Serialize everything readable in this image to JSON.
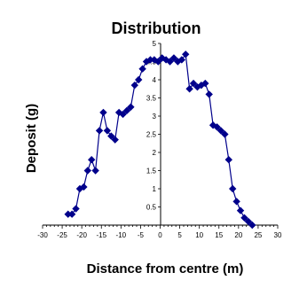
{
  "chart_data": {
    "type": "line",
    "title": "Distribution",
    "xlabel": "Distance from centre (m)",
    "ylabel": "Deposit (g)",
    "xlim": [
      -30,
      30
    ],
    "ylim": [
      0,
      5
    ],
    "x_ticks": [
      -30,
      -25,
      -20,
      -15,
      -10,
      -5,
      0,
      5,
      10,
      15,
      20,
      25,
      30
    ],
    "y_ticks": [
      0.5,
      1,
      1.5,
      2,
      2.5,
      3,
      3.5,
      4,
      4.5,
      5
    ],
    "x_tick_labels": [
      "-30",
      "-25",
      "-20",
      "-15",
      "-10",
      "-5",
      "0",
      "5",
      "10",
      "15",
      "20",
      "25",
      "30"
    ],
    "y_tick_labels": [
      "0.5",
      "1",
      "1.5",
      "2",
      "2.5",
      "3",
      "3.5",
      "4",
      "4.5",
      "5"
    ],
    "marker": "diamond",
    "color": "#00008b",
    "grid": false,
    "series": [
      {
        "points": [
          [
            -23.5,
            0.3
          ],
          [
            -22.5,
            0.3
          ],
          [
            -21.5,
            0.45
          ],
          [
            -20.5,
            1.0
          ],
          [
            -19.5,
            1.05
          ],
          [
            -18.5,
            1.5
          ],
          [
            -17.5,
            1.8
          ],
          [
            -16.5,
            1.5
          ],
          [
            -15.5,
            2.6
          ],
          [
            -14.5,
            3.1
          ],
          [
            -13.5,
            2.6
          ],
          [
            -12.5,
            2.45
          ],
          [
            -11.5,
            2.35
          ],
          [
            -10.5,
            3.1
          ],
          [
            -9.5,
            3.05
          ],
          [
            -8.5,
            3.15
          ],
          [
            -7.5,
            3.25
          ],
          [
            -6.5,
            3.85
          ],
          [
            -5.5,
            4.0
          ],
          [
            -4.5,
            4.3
          ],
          [
            -3.5,
            4.5
          ],
          [
            -2.5,
            4.55
          ],
          [
            -1.5,
            4.55
          ],
          [
            -0.5,
            4.5
          ],
          [
            0.5,
            4.6
          ],
          [
            1.5,
            4.55
          ],
          [
            2.5,
            4.5
          ],
          [
            3.5,
            4.6
          ],
          [
            4.5,
            4.5
          ],
          [
            5.5,
            4.55
          ],
          [
            6.5,
            4.7
          ],
          [
            7.5,
            3.75
          ],
          [
            8.5,
            3.9
          ],
          [
            9.5,
            3.8
          ],
          [
            10.5,
            3.85
          ],
          [
            11.5,
            3.9
          ],
          [
            12.5,
            3.6
          ],
          [
            13.5,
            2.75
          ],
          [
            14.5,
            2.7
          ],
          [
            15.5,
            2.6
          ],
          [
            16.5,
            2.5
          ],
          [
            17.5,
            1.8
          ],
          [
            18.5,
            1.0
          ],
          [
            19.5,
            0.65
          ],
          [
            20.5,
            0.4
          ],
          [
            21.5,
            0.2
          ],
          [
            22.5,
            0.1
          ],
          [
            23.5,
            0.0
          ]
        ]
      }
    ]
  }
}
